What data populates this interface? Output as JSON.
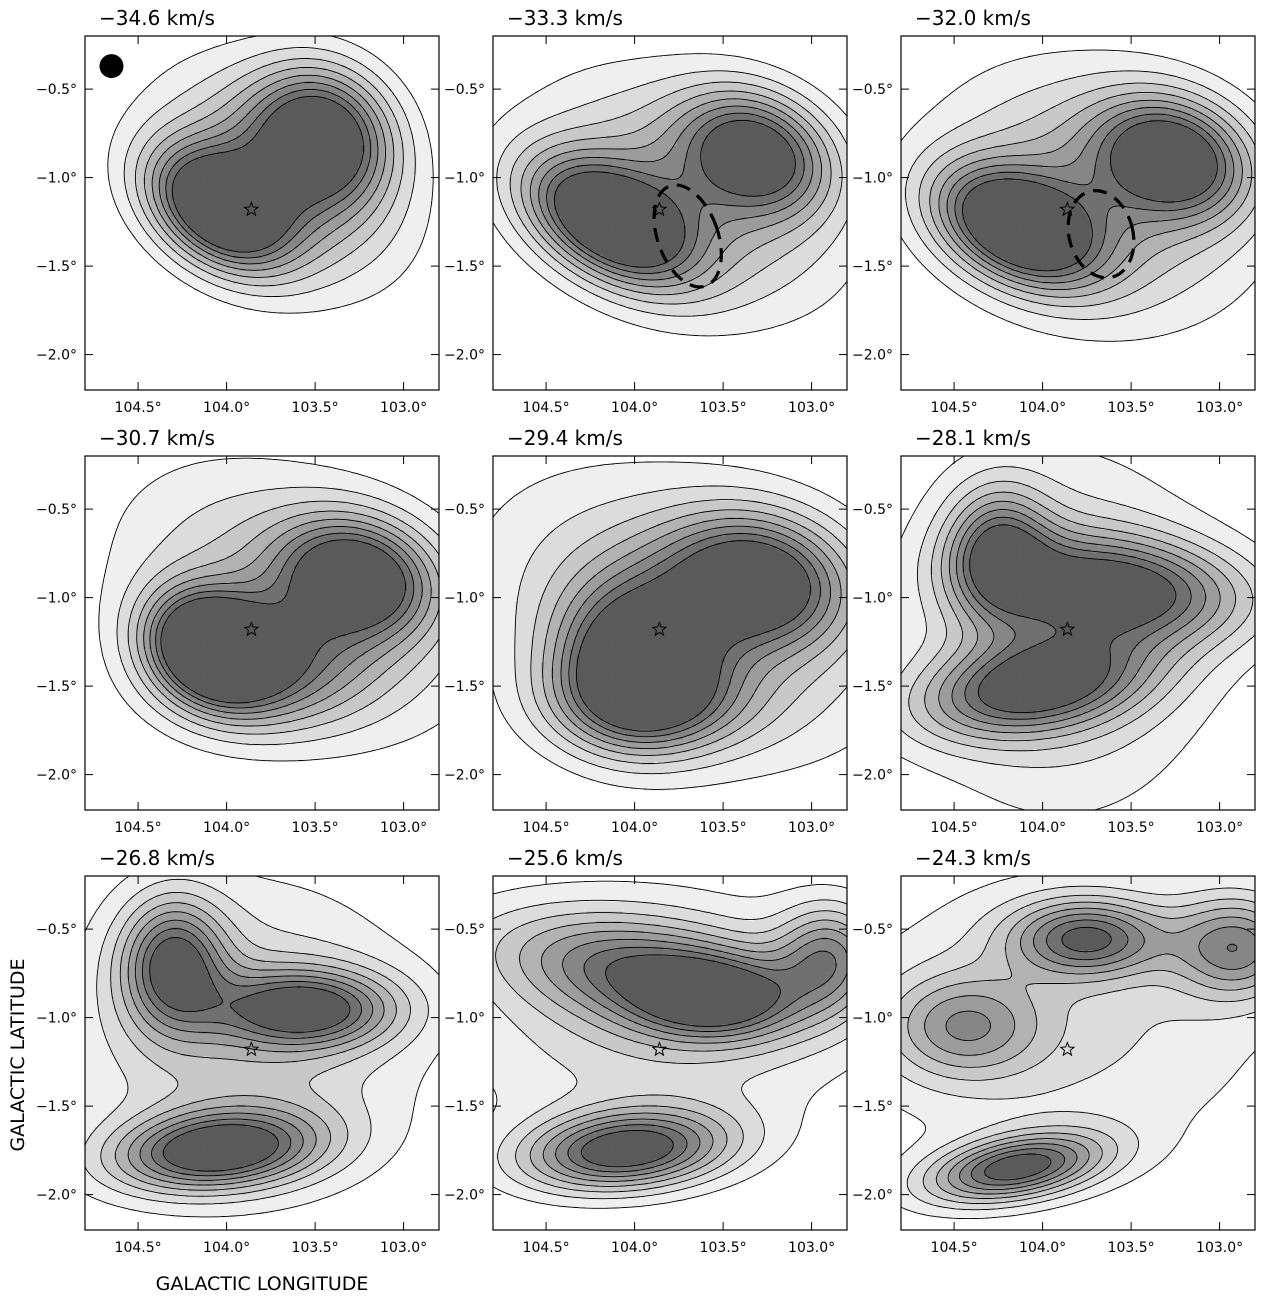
{
  "chart_data": {
    "type": "heatmap",
    "xlabel": "GALACTIC LONGITUDE",
    "ylabel": "GALACTIC LATITUDE",
    "xlim": [
      104.8,
      102.8
    ],
    "ylim": [
      -2.2,
      -0.2
    ],
    "x_ticks": [
      104.5,
      104.0,
      103.5,
      103.0
    ],
    "x_tick_labels": [
      "104.5°",
      "104.0°",
      "103.5°",
      "103.0°"
    ],
    "y_ticks": [
      -0.5,
      -1.0,
      -1.5,
      -2.0
    ],
    "y_tick_labels": [
      "−0.5°",
      "−1.0°",
      "−1.5°",
      "−2.0°"
    ],
    "star_position": {
      "l": 103.86,
      "b": -1.18
    },
    "beam_marker": {
      "l": 104.65,
      "b": -0.37,
      "panel": 0
    },
    "grid": false,
    "colormap": "grayscale, darker = higher intensity",
    "panels": [
      {
        "title": "−34.6 km/s",
        "velocity": -34.6,
        "peaks": [
          {
            "l": 104.05,
            "b": -1.18,
            "amp": 1.0,
            "sl": 0.3,
            "sb": 0.2,
            "angle": 35
          },
          {
            "l": 103.45,
            "b": -0.75,
            "amp": 0.85,
            "sl": 0.28,
            "sb": 0.25,
            "angle": 40
          },
          {
            "l": 103.7,
            "b": -1.0,
            "amp": 0.55,
            "sl": 0.5,
            "sb": 0.35,
            "angle": 35
          }
        ]
      },
      {
        "title": "−33.3 km/s",
        "velocity": -33.3,
        "peaks": [
          {
            "l": 104.15,
            "b": -1.25,
            "amp": 1.0,
            "sl": 0.35,
            "sb": 0.2,
            "angle": 30
          },
          {
            "l": 103.3,
            "b": -0.85,
            "amp": 0.8,
            "sl": 0.3,
            "sb": 0.22,
            "angle": 25
          },
          {
            "l": 103.7,
            "b": -1.1,
            "amp": 0.5,
            "sl": 0.6,
            "sb": 0.4,
            "angle": 25
          }
        ],
        "dashed_ellipse": {
          "l": 103.7,
          "b": -1.33,
          "rl": 0.17,
          "rb": 0.3,
          "angle": 20
        }
      },
      {
        "title": "−32.0 km/s",
        "velocity": -32.0,
        "peaks": [
          {
            "l": 104.15,
            "b": -1.28,
            "amp": 1.0,
            "sl": 0.33,
            "sb": 0.2,
            "angle": 25
          },
          {
            "l": 103.25,
            "b": -0.88,
            "amp": 0.85,
            "sl": 0.3,
            "sb": 0.22,
            "angle": 20
          },
          {
            "l": 103.7,
            "b": -1.1,
            "amp": 0.5,
            "sl": 0.6,
            "sb": 0.45,
            "angle": 20
          }
        ],
        "dashed_ellipse": {
          "l": 103.67,
          "b": -1.32,
          "rl": 0.18,
          "rb": 0.25,
          "angle": 15
        }
      },
      {
        "title": "−30.7 km/s",
        "velocity": -30.7,
        "peaks": [
          {
            "l": 104.1,
            "b": -1.28,
            "amp": 1.0,
            "sl": 0.25,
            "sb": 0.2,
            "angle": 30
          },
          {
            "l": 103.25,
            "b": -0.88,
            "amp": 0.85,
            "sl": 0.3,
            "sb": 0.22,
            "angle": 15
          },
          {
            "l": 103.8,
            "b": -1.4,
            "amp": 0.55,
            "sl": 0.4,
            "sb": 0.25,
            "angle": 0
          },
          {
            "l": 103.6,
            "b": -1.0,
            "amp": 0.4,
            "sl": 0.7,
            "sb": 0.45,
            "angle": 25
          }
        ]
      },
      {
        "title": "−29.4 km/s",
        "velocity": -29.4,
        "peaks": [
          {
            "l": 104.0,
            "b": -1.35,
            "amp": 0.85,
            "sl": 0.3,
            "sb": 0.3,
            "angle": 0
          },
          {
            "l": 103.3,
            "b": -0.9,
            "amp": 0.85,
            "sl": 0.35,
            "sb": 0.25,
            "angle": 10
          },
          {
            "l": 103.9,
            "b": -1.6,
            "amp": 0.45,
            "sl": 0.4,
            "sb": 0.2,
            "angle": 0
          },
          {
            "l": 103.7,
            "b": -1.1,
            "amp": 0.4,
            "sl": 0.8,
            "sb": 0.5,
            "angle": 20
          }
        ]
      },
      {
        "title": "−28.1 km/s",
        "velocity": -28.1,
        "peaks": [
          {
            "l": 104.05,
            "b": -1.5,
            "amp": 0.75,
            "sl": 0.18,
            "sb": 0.45,
            "angle": 80
          },
          {
            "l": 103.55,
            "b": -0.95,
            "amp": 0.75,
            "sl": 0.5,
            "sb": 0.2,
            "angle": 5
          },
          {
            "l": 104.25,
            "b": -0.75,
            "amp": 0.65,
            "sl": 0.2,
            "sb": 0.25,
            "angle": 0
          },
          {
            "l": 103.9,
            "b": -1.2,
            "amp": 0.35,
            "sl": 0.6,
            "sb": 0.7,
            "angle": 0
          }
        ]
      },
      {
        "title": "−26.8 km/s",
        "velocity": -26.8,
        "peaks": [
          {
            "l": 104.05,
            "b": -1.75,
            "amp": 0.9,
            "sl": 0.15,
            "sb": 0.4,
            "angle": 85
          },
          {
            "l": 104.3,
            "b": -0.7,
            "amp": 0.75,
            "sl": 0.2,
            "sb": 0.25,
            "angle": 0
          },
          {
            "l": 103.55,
            "b": -0.95,
            "amp": 0.75,
            "sl": 0.35,
            "sb": 0.15,
            "angle": 0
          },
          {
            "l": 103.9,
            "b": -1.1,
            "amp": 0.35,
            "sl": 0.7,
            "sb": 0.6,
            "angle": 0
          }
        ]
      },
      {
        "title": "−25.6 km/s",
        "velocity": -25.6,
        "peaks": [
          {
            "l": 104.05,
            "b": -1.75,
            "amp": 0.9,
            "sl": 0.15,
            "sb": 0.4,
            "angle": 85
          },
          {
            "l": 103.9,
            "b": -0.75,
            "amp": 0.6,
            "sl": 0.6,
            "sb": 0.2,
            "angle": 10
          },
          {
            "l": 103.55,
            "b": -0.9,
            "amp": 0.5,
            "sl": 0.3,
            "sb": 0.15,
            "angle": 0
          },
          {
            "l": 102.9,
            "b": -0.65,
            "amp": 0.55,
            "sl": 0.2,
            "sb": 0.2,
            "angle": 0
          },
          {
            "l": 103.9,
            "b": -1.0,
            "amp": 0.3,
            "sl": 0.8,
            "sb": 0.5,
            "angle": 0
          }
        ]
      },
      {
        "title": "−24.3 km/s",
        "velocity": -24.3,
        "peaks": [
          {
            "l": 104.15,
            "b": -1.85,
            "amp": 0.85,
            "sl": 0.12,
            "sb": 0.35,
            "angle": 80
          },
          {
            "l": 103.75,
            "b": -0.55,
            "amp": 0.7,
            "sl": 0.3,
            "sb": 0.15,
            "angle": 0
          },
          {
            "l": 102.9,
            "b": -0.6,
            "amp": 0.6,
            "sl": 0.25,
            "sb": 0.2,
            "angle": 0
          },
          {
            "l": 104.45,
            "b": -1.05,
            "amp": 0.45,
            "sl": 0.3,
            "sb": 0.2,
            "angle": 0
          },
          {
            "l": 103.9,
            "b": -1.0,
            "amp": 0.25,
            "sl": 0.9,
            "sb": 0.6,
            "angle": 0
          }
        ]
      }
    ]
  }
}
